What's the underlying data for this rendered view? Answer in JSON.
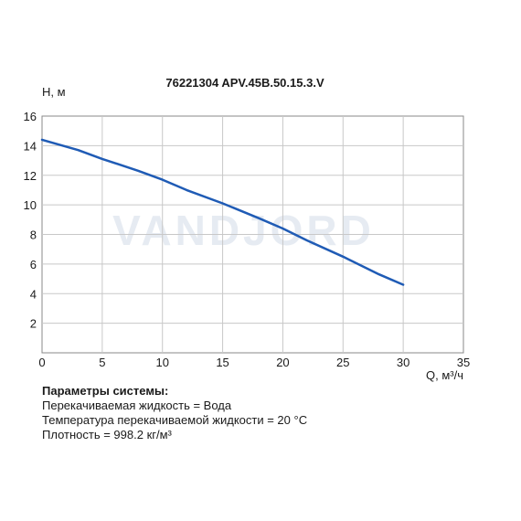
{
  "chart_data": {
    "type": "line",
    "title": "76221304 APV.45B.50.15.3.V",
    "ylabel": "H, м",
    "xlabel": "Q, м³/ч",
    "xlim": [
      0,
      35
    ],
    "ylim": [
      0,
      16
    ],
    "xticks": [
      0,
      5,
      10,
      15,
      20,
      25,
      30,
      35
    ],
    "yticks": [
      2,
      4,
      6,
      8,
      10,
      12,
      14,
      16
    ],
    "grid": true,
    "watermark": "VANDJORD",
    "series": [
      {
        "color": "#1f5bb5",
        "x": [
          0,
          3,
          5,
          8,
          10,
          12,
          15,
          18,
          20,
          22,
          25,
          28,
          30
        ],
        "y": [
          14.4,
          13.7,
          13.1,
          12.3,
          11.7,
          11.0,
          10.1,
          9.1,
          8.4,
          7.6,
          6.5,
          5.3,
          4.6
        ]
      }
    ]
  },
  "params": {
    "header": "Параметры системы:",
    "lines": [
      "Перекачиваемая жидкость = Вода",
      "Температура перекачиваемой жидкости = 20 °C",
      "Плотность = 998.2 кг/м³"
    ]
  }
}
